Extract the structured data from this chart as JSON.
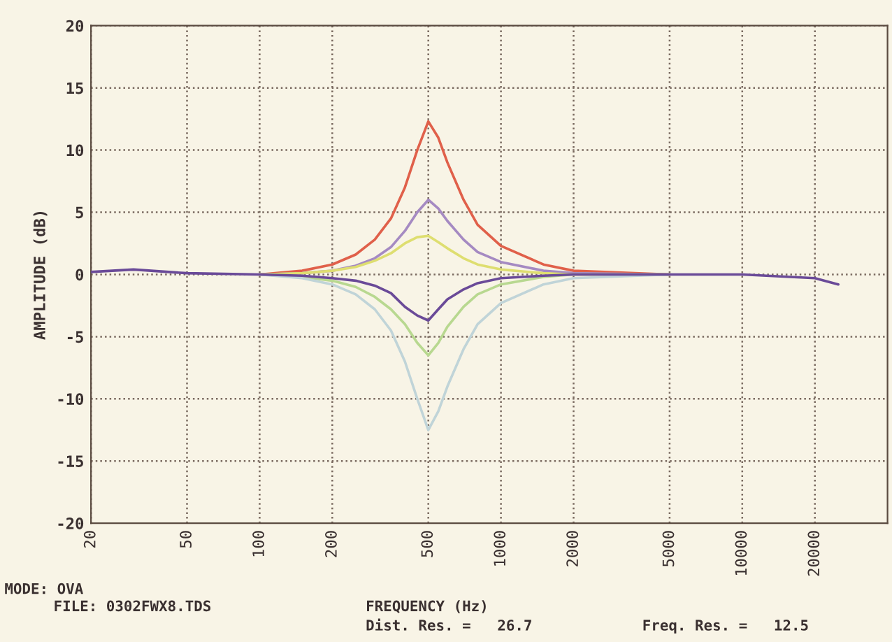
{
  "chart_data": {
    "type": "line",
    "xlabel": "FREQUENCY (Hz)",
    "ylabel": "AMPLITUDE (dB)",
    "log": "x",
    "grid": true,
    "line_style": "solid",
    "marker": "none",
    "xlim": [
      20,
      40000
    ],
    "xticks": [
      20,
      50,
      100,
      200,
      500,
      1000,
      2000,
      5000,
      10000,
      20000
    ],
    "ylim": [
      -20,
      20
    ],
    "yticks": [
      -20,
      -15,
      -10,
      -5,
      0,
      5,
      10,
      15,
      20
    ],
    "x": [
      20,
      30,
      50,
      100,
      150,
      200,
      250,
      300,
      350,
      400,
      450,
      500,
      550,
      600,
      700,
      800,
      1000,
      1500,
      2000,
      5000,
      10000,
      20000,
      25000
    ],
    "series": [
      {
        "color": "#e0604a",
        "values": [
          null,
          null,
          null,
          0,
          0.3,
          0.8,
          1.6,
          2.8,
          4.5,
          7,
          10,
          12.3,
          11,
          9,
          6,
          4,
          2.3,
          0.8,
          0.3,
          0,
          null,
          null,
          null
        ]
      },
      {
        "color": "#a58ac2",
        "values": [
          null,
          null,
          null,
          0,
          0.1,
          0.3,
          0.7,
          1.3,
          2.2,
          3.5,
          5,
          6,
          5.3,
          4.3,
          2.8,
          1.8,
          1,
          0.3,
          0.1,
          0,
          null,
          null,
          null
        ]
      },
      {
        "color": "#dede70",
        "values": [
          null,
          null,
          null,
          0,
          0.1,
          0.3,
          0.6,
          1.1,
          1.7,
          2.5,
          3,
          3.1,
          2.6,
          2.1,
          1.3,
          0.8,
          0.4,
          0.1,
          0,
          0,
          null,
          null,
          null
        ]
      },
      {
        "color": "#6a4a98",
        "values": [
          0.2,
          0.4,
          0.1,
          0,
          -0.1,
          -0.3,
          -0.5,
          -0.9,
          -1.5,
          -2.6,
          -3.3,
          -3.7,
          -2.8,
          -2,
          -1.2,
          -0.7,
          -0.3,
          -0.1,
          0,
          0,
          0,
          -0.3,
          -0.8
        ]
      },
      {
        "color": "#b8d890",
        "values": [
          null,
          null,
          null,
          0,
          -0.2,
          -0.5,
          -1,
          -1.8,
          -2.8,
          -4,
          -5.5,
          -6.5,
          -5.5,
          -4.2,
          -2.6,
          -1.6,
          -0.8,
          -0.2,
          0,
          0,
          null,
          null,
          null
        ]
      },
      {
        "color": "#c0d4d8",
        "values": [
          null,
          null,
          null,
          0,
          -0.3,
          -0.8,
          -1.6,
          -2.8,
          -4.5,
          -7,
          -10,
          -12.5,
          -11,
          -9,
          -6,
          -4,
          -2.3,
          -0.8,
          -0.3,
          0,
          null,
          null,
          null
        ]
      }
    ],
    "annotations": [
      "MODE: OVA",
      "FILE: 0302FWX8.TDS",
      "Dist. Res. =   26.7",
      "Freq. Res. =   12.5"
    ]
  }
}
